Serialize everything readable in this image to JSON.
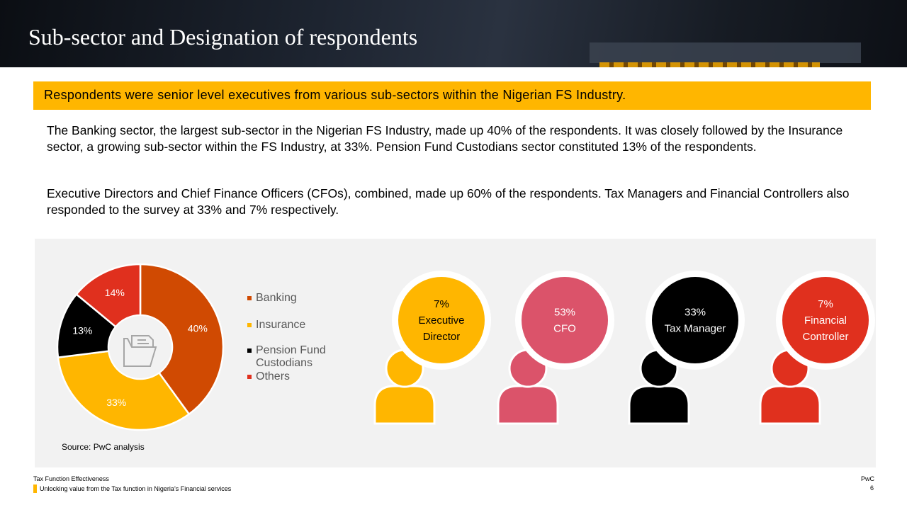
{
  "header": {
    "title": "Sub-sector and Designation of respondents"
  },
  "callout": "Respondents were senior level executives from various sub-sectors within the Nigerian FS Industry.",
  "paragraphs": [
    "The Banking sector, the largest sub-sector in the Nigerian FS Industry, made up 40% of the respondents. It was closely followed by the Insurance sector, a growing sub-sector within the FS Industry, at 33%. Pension Fund Custodians sector constituted 13% of the respondents.",
    "Executive Directors and Chief Finance Officers (CFOs), combined, made up 60% of the respondents. Tax Managers and Financial Controllers also responded to the survey at 33% and 7% respectively."
  ],
  "chart_data": [
    {
      "type": "pie",
      "categories": [
        "Banking",
        "Insurance",
        "Pension Fund Custodians",
        "Others"
      ],
      "values": [
        40,
        33,
        13,
        14
      ],
      "data_labels": [
        "40%",
        "33%",
        "13%",
        "14%"
      ],
      "colors": [
        "#d04a02",
        "#ffb600",
        "#000000",
        "#e0301e"
      ],
      "legend_position": "right",
      "center_icon": "folder-icon"
    },
    {
      "type": "bar",
      "categories": [
        "Executive Director",
        "CFO",
        "Tax Manager",
        "Financial Controller"
      ],
      "values": [
        7,
        53,
        33,
        7
      ],
      "items": [
        {
          "pct": "7%",
          "lines": [
            "Executive",
            "Director"
          ],
          "color": "#ffb600",
          "text_color": "#000000"
        },
        {
          "pct": "53%",
          "lines": [
            "CFO"
          ],
          "color": "#db536a",
          "text_color": "#ffffff"
        },
        {
          "pct": "33%",
          "lines": [
            "Tax Manager"
          ],
          "color": "#000000",
          "text_color": "#ffffff"
        },
        {
          "pct": "7%",
          "lines": [
            "Financial",
            "Controller"
          ],
          "color": "#e0301e",
          "text_color": "#ffffff"
        }
      ]
    }
  ],
  "source": "Source: PwC analysis",
  "footer": {
    "left_line1": "Tax Function Effectiveness",
    "left_line2": "Unlocking value from the Tax function in Nigeria’s Financial services",
    "right_line1": "PwC",
    "right_line2": "6"
  }
}
